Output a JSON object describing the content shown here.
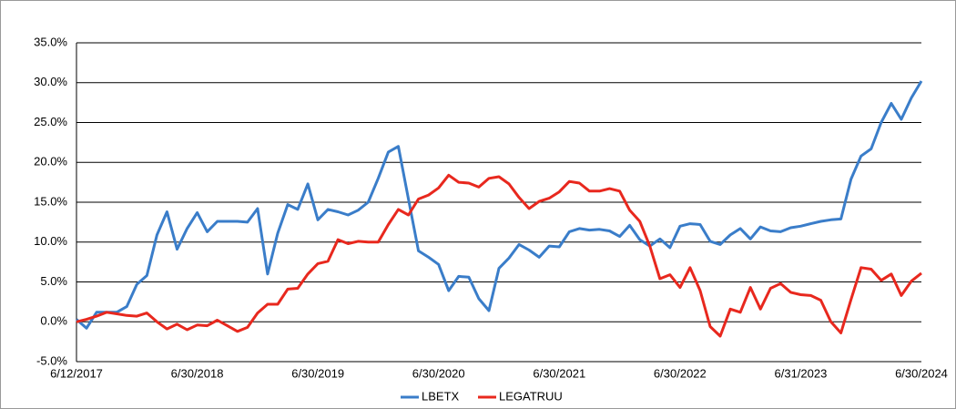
{
  "chart_data": {
    "type": "line",
    "categories": [
      "6/12/2017",
      null,
      null,
      null,
      null,
      null,
      null,
      null,
      null,
      null,
      null,
      null,
      "6/30/2018",
      null,
      null,
      null,
      null,
      null,
      null,
      null,
      null,
      null,
      null,
      null,
      "6/30/2019",
      null,
      null,
      null,
      null,
      null,
      null,
      null,
      null,
      null,
      null,
      null,
      "6/30/2020",
      null,
      null,
      null,
      null,
      null,
      null,
      null,
      null,
      null,
      null,
      null,
      "6/30/2021",
      null,
      null,
      null,
      null,
      null,
      null,
      null,
      null,
      null,
      null,
      null,
      "6/30/2022",
      null,
      null,
      null,
      null,
      null,
      null,
      null,
      null,
      null,
      null,
      null,
      "6/31/2023",
      null,
      null,
      null,
      null,
      null,
      null,
      null,
      null,
      null,
      null,
      null,
      "6/30/2024"
    ],
    "series": [
      {
        "name": "LBETX",
        "color": "#3a7dc9",
        "values": [
          0.3,
          -0.8,
          1.2,
          1.2,
          1.2,
          1.9,
          4.7,
          5.8,
          10.9,
          13.8,
          9.1,
          11.7,
          13.7,
          11.3,
          12.6,
          12.6,
          12.6,
          12.5,
          14.2,
          6.0,
          11.1,
          14.7,
          14.1,
          17.3,
          12.8,
          14.1,
          13.8,
          13.4,
          14.0,
          15.0,
          18.0,
          21.3,
          22.0,
          15.4,
          8.9,
          8.1,
          7.2,
          3.9,
          5.7,
          5.6,
          2.9,
          1.4,
          6.7,
          8.0,
          9.7,
          9.0,
          8.1,
          9.5,
          9.4,
          11.3,
          11.7,
          11.5,
          11.6,
          11.4,
          10.7,
          12.1,
          10.3,
          9.5,
          10.4,
          9.3,
          12.0,
          12.3,
          12.2,
          10.1,
          9.7,
          10.9,
          11.7,
          10.4,
          11.9,
          11.4,
          11.3,
          11.8,
          12.0,
          12.3,
          12.6,
          12.8,
          12.9,
          17.9,
          20.8,
          21.7,
          25.0,
          27.4,
          25.4,
          28.1,
          30.2
        ]
      },
      {
        "name": "LEGATRUU",
        "color": "#e8281e",
        "values": [
          0.0,
          0.3,
          0.7,
          1.2,
          1.0,
          0.8,
          0.7,
          1.1,
          0.0,
          -0.9,
          -0.3,
          -1.0,
          -0.4,
          -0.5,
          0.2,
          -0.5,
          -1.2,
          -0.7,
          1.1,
          2.2,
          2.2,
          4.1,
          4.2,
          6.0,
          7.3,
          7.6,
          10.3,
          9.8,
          10.1,
          10.0,
          10.0,
          12.2,
          14.1,
          13.4,
          15.4,
          15.9,
          16.8,
          18.4,
          17.5,
          17.4,
          16.9,
          18.0,
          18.2,
          17.3,
          15.6,
          14.2,
          15.1,
          15.5,
          16.3,
          17.6,
          17.4,
          16.4,
          16.4,
          16.7,
          16.4,
          14.0,
          12.6,
          9.5,
          5.4,
          5.9,
          4.3,
          6.8,
          3.9,
          -0.6,
          -1.8,
          1.6,
          1.2,
          4.3,
          1.6,
          4.2,
          4.8,
          3.7,
          3.4,
          3.3,
          2.7,
          0.0,
          -1.4,
          2.8,
          6.8,
          6.6,
          5.2,
          6.0,
          3.3,
          5.1,
          6.1
        ]
      }
    ],
    "ylim": [
      -5,
      35
    ],
    "yticks": [
      {
        "value": -5,
        "label": "-5.0%"
      },
      {
        "value": 0,
        "label": "0.0%"
      },
      {
        "value": 5,
        "label": "5.0%"
      },
      {
        "value": 10,
        "label": "10.0%"
      },
      {
        "value": 15,
        "label": "15.0%"
      },
      {
        "value": 20,
        "label": "20.0%"
      },
      {
        "value": 25,
        "label": "25.0%"
      },
      {
        "value": 30,
        "label": "30.0%"
      },
      {
        "value": 35,
        "label": "35.0%"
      }
    ],
    "grid": true,
    "legend": "bottom"
  }
}
